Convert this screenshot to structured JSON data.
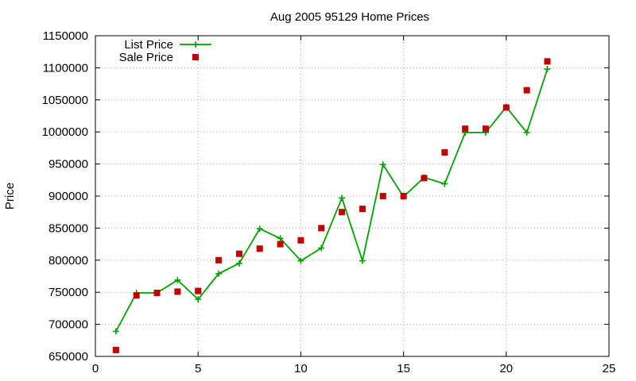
{
  "chart_data": {
    "type": "line",
    "title": "Aug 2005 95129 Home Prices",
    "xlabel": "",
    "ylabel": "Price",
    "xlim": [
      0,
      25
    ],
    "ylim": [
      650000,
      1150000
    ],
    "xticks": [
      0,
      5,
      10,
      15,
      20,
      25
    ],
    "yticks": [
      650000,
      700000,
      750000,
      800000,
      850000,
      900000,
      950000,
      1000000,
      1050000,
      1100000,
      1150000
    ],
    "grid": true,
    "legend_position": "top-left",
    "series": [
      {
        "name": "List Price",
        "style": "line-points",
        "marker": "plus",
        "color": "#00a000",
        "x": [
          1,
          2,
          3,
          4,
          5,
          6,
          7,
          8,
          9,
          10,
          11,
          12,
          13,
          14,
          15,
          16,
          17,
          18,
          19,
          20,
          21,
          22
        ],
        "y": [
          689000,
          749000,
          749000,
          769000,
          739000,
          779000,
          795000,
          849000,
          834000,
          799000,
          819000,
          897000,
          799000,
          949000,
          899000,
          929000,
          919000,
          999000,
          999000,
          1039000,
          999000,
          1098000
        ]
      },
      {
        "name": "Sale Price",
        "style": "points",
        "marker": "square",
        "color": "#c00000",
        "x": [
          1,
          2,
          3,
          4,
          5,
          6,
          7,
          8,
          9,
          10,
          11,
          12,
          13,
          14,
          15,
          16,
          17,
          18,
          19,
          20,
          21,
          22
        ],
        "y": [
          660000,
          745000,
          749000,
          751000,
          752000,
          800000,
          810000,
          818000,
          825000,
          831000,
          850000,
          875000,
          880000,
          900000,
          900000,
          928000,
          968000,
          1005000,
          1005000,
          1038000,
          1065000,
          1110000
        ]
      }
    ]
  }
}
